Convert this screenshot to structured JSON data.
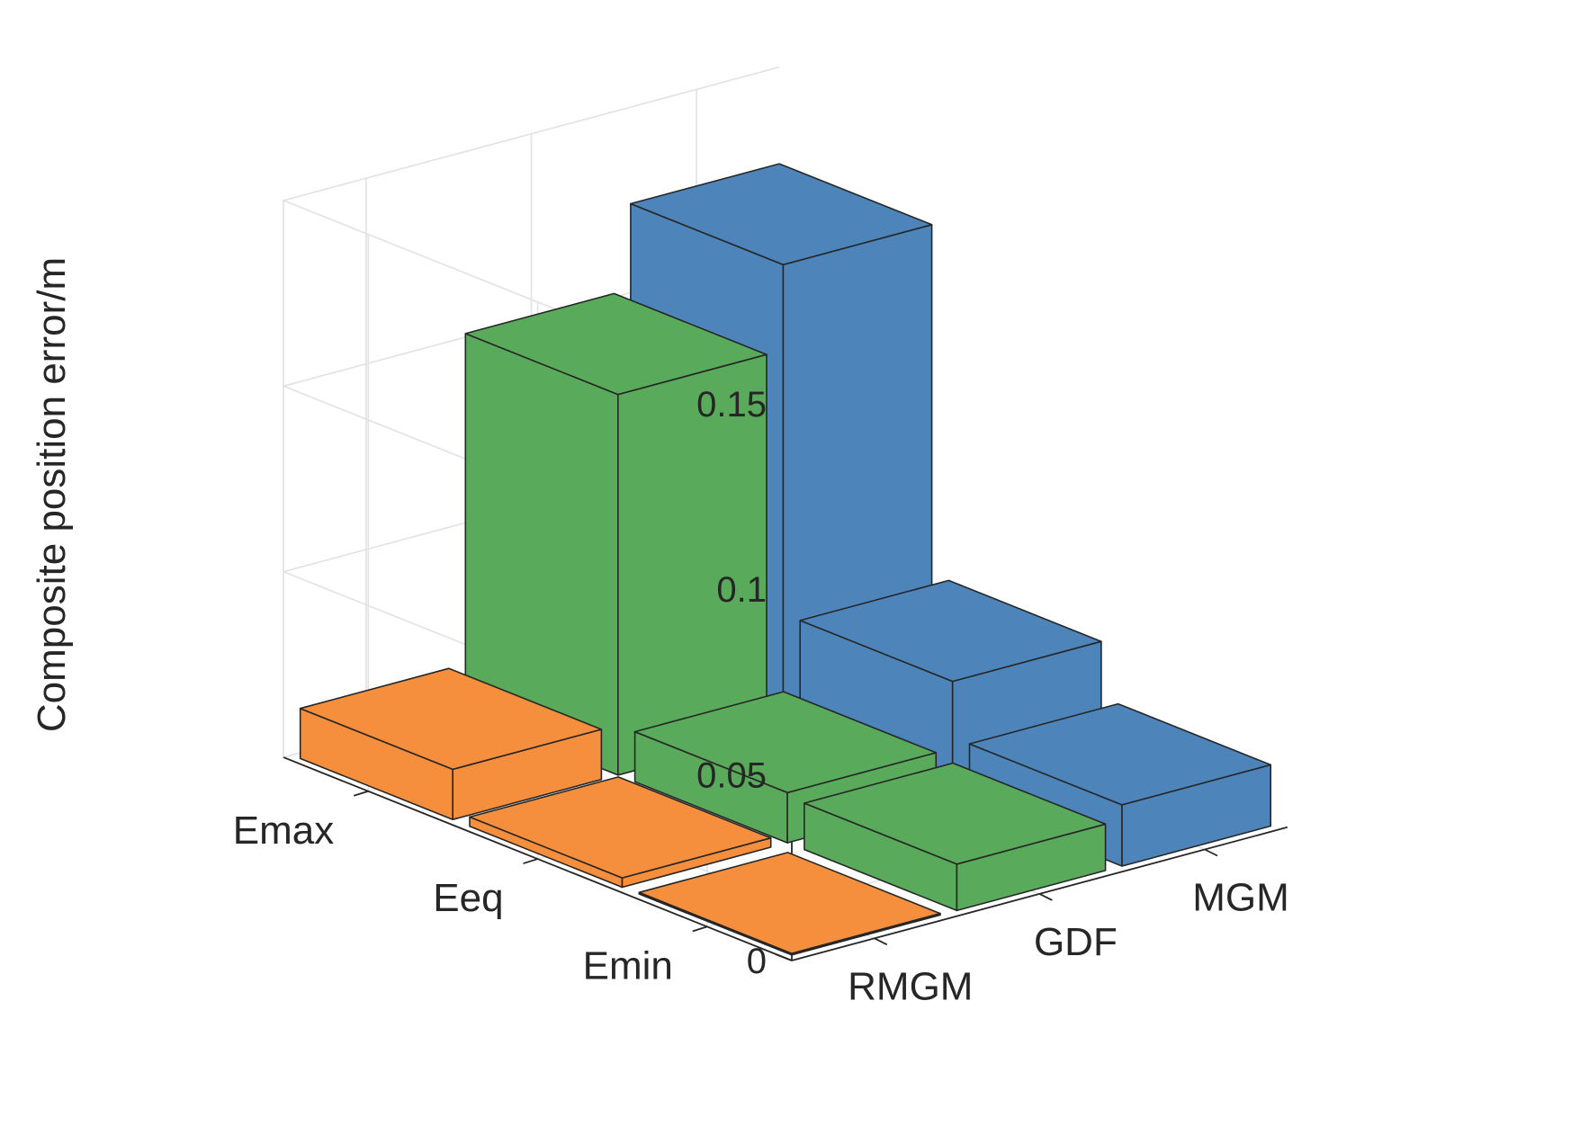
{
  "chart_data": {
    "type": "bar3",
    "title": "",
    "zlabel": "Composite position error/m",
    "rows": [
      "Emax",
      "Eeq",
      "Emin"
    ],
    "columns": [
      "RMGM",
      "GDF",
      "MGM"
    ],
    "zlim": [
      0,
      0.15
    ],
    "zticks": [
      0,
      0.05,
      0.1,
      0.15
    ],
    "ztick_labels": [
      "0",
      "0.05",
      "0.1",
      "0.15"
    ],
    "grid": true,
    "series": [
      {
        "name": "RMGM",
        "color": "#f68f3d",
        "values": [
          0.0135,
          0.0025,
          0.0
        ]
      },
      {
        "name": "GDF",
        "color": "#59aa5a",
        "values": [
          0.1025,
          0.0135,
          0.0125
        ]
      },
      {
        "name": "MGM",
        "color": "#4d85bb",
        "values": [
          0.1255,
          0.0315,
          0.0165
        ]
      }
    ]
  }
}
